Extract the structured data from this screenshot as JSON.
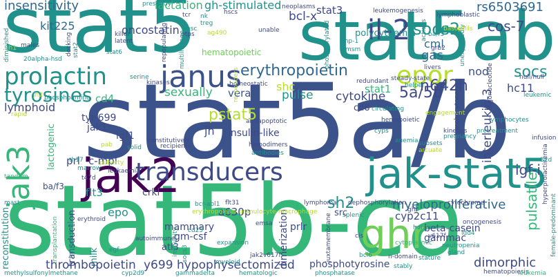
{
  "words": [
    {
      "text": "stat5",
      "color": "#21918c"
    },
    {
      "text": "stat5ab",
      "color": "#21918c"
    },
    {
      "text": "stat5a/b",
      "color": "#3b528b"
    },
    {
      "text": "stat5b-ca",
      "color": "#35b779"
    },
    {
      "text": "jak2",
      "color": "#440154"
    },
    {
      "text": "jak-stat5",
      "color": "#21918c"
    },
    {
      "text": "ghr",
      "color": "#6ece58"
    },
    {
      "text": "janus",
      "color": "#3b528b"
    },
    {
      "text": "prolactin",
      "color": "#21918c"
    },
    {
      "text": "jak3",
      "color": "#35b779"
    },
    {
      "text": "transducers",
      "color": "#3e4989"
    },
    {
      "text": "il-2",
      "color": "#3e4989"
    },
    {
      "text": "epor",
      "color": "#b5de2b"
    },
    {
      "text": "socs2",
      "color": "#21918c"
    },
    {
      "text": "tyrosines",
      "color": "#21918c"
    },
    {
      "text": "erythropoietin",
      "color": "#31688e"
    },
    {
      "text": "insensitivity",
      "color": "#31688e"
    },
    {
      "text": "lactation",
      "color": "#35b779"
    },
    {
      "text": "gh-stimulated",
      "color": "#21918c"
    },
    {
      "text": "stat3",
      "color": "#3e4989"
    },
    {
      "text": "rs6503691",
      "color": "#31688e"
    },
    {
      "text": "kit225",
      "color": "#31688e"
    },
    {
      "text": "oncostatin",
      "color": "#3e4989"
    },
    {
      "text": "bcl-x",
      "color": "#3e4989"
    },
    {
      "text": "cml",
      "color": "#31688e"
    },
    {
      "text": "cos-7",
      "color": "#3e4989"
    },
    {
      "text": "polycythemia",
      "color": "#21918c"
    },
    {
      "text": "gas",
      "color": "#31688e"
    },
    {
      "text": "hematopoietic",
      "color": "#6ece58"
    },
    {
      "text": "socs",
      "color": "#21918c"
    },
    {
      "text": "n642h",
      "color": "#3e4989"
    },
    {
      "text": "nod",
      "color": "#3b528b"
    },
    {
      "text": "sexually",
      "color": "#35b779"
    },
    {
      "text": "shc",
      "color": "#b5de2b"
    },
    {
      "text": "pulse",
      "color": "#21918c"
    },
    {
      "text": "vera",
      "color": "#3b528b"
    },
    {
      "text": "5a/5b",
      "color": "#3e4989"
    },
    {
      "text": "hc11",
      "color": "#3e4989"
    },
    {
      "text": "stat1",
      "color": "#35b779"
    },
    {
      "text": "lymphoid",
      "color": "#3e4989"
    },
    {
      "text": "cd4",
      "color": "#35b779"
    },
    {
      "text": "cytokine",
      "color": "#3e4989"
    },
    {
      "text": "cd8",
      "color": "#3e4989"
    },
    {
      "text": "interleukin-3",
      "color": "#3e4989"
    },
    {
      "text": "tyr-699",
      "color": "#3e4989"
    },
    {
      "text": "pstat5",
      "color": "#b5de2b"
    },
    {
      "text": "jak1",
      "color": "#3e4989"
    },
    {
      "text": "igf1",
      "color": "#3e4989"
    },
    {
      "text": "insulin-like",
      "color": "#3e4989"
    },
    {
      "text": "jh",
      "color": "#3e4989"
    },
    {
      "text": "ba/f3",
      "color": "#3e4989"
    },
    {
      "text": "prl",
      "color": "#3e4989"
    },
    {
      "text": "c-mpl",
      "color": "#3e4989"
    },
    {
      "text": "igf-i",
      "color": "#3e4989"
    },
    {
      "text": "pulsatile",
      "color": "#35b779"
    },
    {
      "text": "sh2",
      "color": "#21918c"
    },
    {
      "text": "myeloproliferative",
      "color": "#31688e"
    },
    {
      "text": "crkl",
      "color": "#3e4989"
    },
    {
      "text": "flt3",
      "color": "#21918c"
    },
    {
      "text": "a630p",
      "color": "#3e4989"
    },
    {
      "text": "src",
      "color": "#3e4989"
    },
    {
      "text": "cyp2c11",
      "color": "#3e4989"
    },
    {
      "text": "epo",
      "color": "#21918c"
    },
    {
      "text": "mammary",
      "color": "#3e4989"
    },
    {
      "text": "prlr",
      "color": "#3e4989"
    },
    {
      "text": "beta-casein",
      "color": "#3e4989"
    },
    {
      "text": "gammac",
      "color": "#3e4989"
    },
    {
      "text": "gm-csf",
      "color": "#3e4989"
    },
    {
      "text": "dimerization",
      "color": "#3e4989"
    },
    {
      "text": "atl3",
      "color": "#3e4989"
    },
    {
      "text": "milk",
      "color": "#21918c"
    },
    {
      "text": "transduction",
      "color": "#3e4989"
    },
    {
      "text": "reconstitution",
      "color": "#21918c"
    },
    {
      "text": "thrombopoietin",
      "color": "#3e4989"
    },
    {
      "text": "y699",
      "color": "#3e4989"
    },
    {
      "text": "hypophysectomized",
      "color": "#3e4989"
    },
    {
      "text": "phosphotyrosine",
      "color": "#3e4989"
    },
    {
      "text": "dimorphic",
      "color": "#3e4989"
    },
    {
      "text": "lactogenic",
      "color": "#35b779"
    },
    {
      "text": "tandem",
      "color": "#35b779"
    },
    {
      "text": "methylsulfonylmethane",
      "color": "#21918c"
    },
    {
      "text": "gammadelta",
      "color": "#21918c"
    },
    {
      "text": "phosphatase",
      "color": "#21918c"
    },
    {
      "text": "hematopoiesis",
      "color": "#3e4989"
    },
    {
      "text": "leukemia",
      "color": "#35b779"
    },
    {
      "text": "cyp2d9",
      "color": "#21918c"
    },
    {
      "text": "hematologic",
      "color": "#21918c"
    },
    {
      "text": "stature",
      "color": "#21918c"
    },
    {
      "text": "neutropenia",
      "color": "#21918c"
    },
    {
      "text": "cytoplasmic",
      "color": "#35b779"
    },
    {
      "text": "gland",
      "color": "#21918c"
    },
    {
      "text": "female-predominant",
      "color": "#21918c"
    },
    {
      "text": "hyperprolactinemia",
      "color": "#3e4989"
    },
    {
      "text": "stably",
      "color": "#21918c"
    },
    {
      "text": "bcl6",
      "color": "#21918c"
    },
    {
      "text": "n-domain",
      "color": "#3e4989"
    },
    {
      "text": "v617f",
      "color": "#3e4989"
    },
    {
      "text": "oncogenesis",
      "color": "#3e4989"
    },
    {
      "text": "idd4",
      "color": "#21918c"
    },
    {
      "text": "hormone",
      "color": "#21918c"
    },
    {
      "text": "cytochrome",
      "color": "#3e4989"
    },
    {
      "text": "dephosphorylation",
      "color": "#3e4989"
    },
    {
      "text": "ghi",
      "color": "#3e4989"
    },
    {
      "text": "cis",
      "color": "#3e4989"
    },
    {
      "text": "splenic",
      "color": "#21918c"
    },
    {
      "text": "lymphoma",
      "color": "#3e4989"
    },
    {
      "text": "flt31",
      "color": "#3e4989"
    },
    {
      "text": "bcr-abl1",
      "color": "#21918c"
    },
    {
      "text": "erythropoiesis",
      "color": "#b5de2b"
    },
    {
      "text": "granulocyte-macrophage",
      "color": "#b5de2b"
    },
    {
      "text": "juxtamembrane",
      "color": "#3e4989"
    },
    {
      "text": "emsa",
      "color": "#3e4989"
    },
    {
      "text": "cd25",
      "color": "#21918c"
    },
    {
      "text": "erythroid",
      "color": "#3e4989"
    },
    {
      "text": "expansion",
      "color": "#21918c"
    },
    {
      "text": "myeloid",
      "color": "#21918c"
    },
    {
      "text": "jak2v617f",
      "color": "#3e4989"
    },
    {
      "text": "socs3",
      "color": "#21918c"
    },
    {
      "text": "immunity",
      "color": "#21918c"
    },
    {
      "text": "egf",
      "color": "#21918c"
    },
    {
      "text": "immunological",
      "color": "#21918c"
    },
    {
      "text": "transplantation",
      "color": "#35b779"
    },
    {
      "text": "autoimmune",
      "color": "#3e4989"
    },
    {
      "text": "mast",
      "color": "#21918c"
    },
    {
      "text": "t47d",
      "color": "#3e4989"
    },
    {
      "text": "marrow",
      "color": "#21918c"
    },
    {
      "text": "leukaemia",
      "color": "#3e4989"
    },
    {
      "text": "puberty",
      "color": "#b5de2b"
    },
    {
      "text": "th17",
      "color": "#21918c"
    },
    {
      "text": "pab",
      "color": "#b5de2b"
    },
    {
      "text": "solid",
      "color": "#21918c"
    },
    {
      "text": "rapid",
      "color": "#b5de2b"
    },
    {
      "text": "phosphoamino",
      "color": "#21918c"
    },
    {
      "text": "serine",
      "color": "#21918c"
    },
    {
      "text": "kinases",
      "color": "#3e4989"
    },
    {
      "text": "constitutively",
      "color": "#3e4989"
    },
    {
      "text": "recipients",
      "color": "#3e4989"
    },
    {
      "text": "homeostatic",
      "color": "#3e4989"
    },
    {
      "text": "antiapoptotic",
      "color": "#3e4989"
    },
    {
      "text": "homodimers",
      "color": "#3e4989"
    },
    {
      "text": "antibodies",
      "color": "#21918c"
    },
    {
      "text": "responders",
      "color": "#b5de2b"
    },
    {
      "text": "null/null",
      "color": "#3e4989"
    },
    {
      "text": "leukemic",
      "color": "#21918c"
    },
    {
      "text": "infusion",
      "color": "#3e4989"
    },
    {
      "text": "32d",
      "color": "#21918c"
    },
    {
      "text": "pretreatment",
      "color": "#21918c"
    },
    {
      "text": "engagement",
      "color": "#b5de2b"
    },
    {
      "text": "lymphocytes",
      "color": "#21918c"
    },
    {
      "text": "kinetics",
      "color": "#3e4989"
    },
    {
      "text": "pregnancy",
      "color": "#21918c"
    },
    {
      "text": "circulating",
      "color": "#21918c"
    },
    {
      "text": "hemopoietic",
      "color": "#3e4989"
    },
    {
      "text": "anemia",
      "color": "#21918c"
    },
    {
      "text": "subsets",
      "color": "#21918c"
    },
    {
      "text": "arcuate",
      "color": "#b5de2b"
    },
    {
      "text": "cyps",
      "color": "#21918c"
    },
    {
      "text": "lymphocytopenia",
      "color": "#3e4989"
    },
    {
      "text": "oligonucleotide",
      "color": "#3e4989"
    },
    {
      "text": "redundant",
      "color": "#3e4989"
    },
    {
      "text": "steady-state",
      "color": "#3e4989"
    },
    {
      "text": "helper",
      "color": "#21918c"
    },
    {
      "text": "livers",
      "color": "#3e4989"
    },
    {
      "text": "unexpectedly",
      "color": "#21918c"
    },
    {
      "text": "grb2",
      "color": "#3e4989"
    },
    {
      "text": "ba/f3",
      "color": "#21918c"
    },
    {
      "text": "basophils",
      "color": "#b5de2b"
    },
    {
      "text": "actions",
      "color": "#21918c"
    },
    {
      "text": "lymphoblastic",
      "color": "#3e4989"
    },
    {
      "text": "leukemogenesis",
      "color": "#3e4989"
    },
    {
      "text": "neoplasms",
      "color": "#3e4989"
    },
    {
      "text": "msm",
      "color": "#21918c"
    },
    {
      "text": "shp-1",
      "color": "#21918c"
    },
    {
      "text": "phosphorylated",
      "color": "#21918c"
    },
    {
      "text": "unable",
      "color": "#3e4989"
    },
    {
      "text": "hscs",
      "color": "#3e4989"
    },
    {
      "text": "presently",
      "color": "#21918c"
    },
    {
      "text": "tcr",
      "color": "#3e4989"
    },
    {
      "text": "nk",
      "color": "#21918c"
    },
    {
      "text": "treg",
      "color": "#21918c"
    },
    {
      "text": "hsc",
      "color": "#21918c"
    },
    {
      "text": "ag490",
      "color": "#b5de2b"
    },
    {
      "text": "ptps",
      "color": "#3e4989"
    },
    {
      "text": "killer",
      "color": "#3e4989"
    },
    {
      "text": "latent",
      "color": "#3e4989"
    },
    {
      "text": "stat6",
      "color": "#21918c"
    },
    {
      "text": "repopulating",
      "color": "#3e4989"
    },
    {
      "text": "multilineage",
      "color": "#21918c"
    },
    {
      "text": "males",
      "color": "#3e4989"
    },
    {
      "text": "docking",
      "color": "#3e4989"
    },
    {
      "text": "stat2",
      "color": "#21918c"
    },
    {
      "text": "20alpha-hsd",
      "color": "#21918c"
    },
    {
      "text": "diminished",
      "color": "#21918c"
    },
    {
      "text": "jh1",
      "color": "#b5de2b"
    },
    {
      "text": "jh2",
      "color": "#b5de2b"
    }
  ]
}
